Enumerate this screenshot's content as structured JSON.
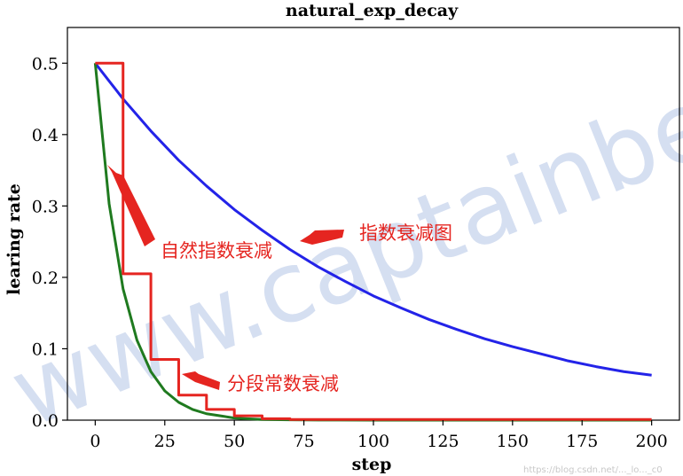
{
  "chart_data": {
    "type": "line",
    "title": "natural_exp_decay",
    "xlabel": "step",
    "ylabel": "learing rate",
    "xlim": [
      -10,
      210
    ],
    "ylim": [
      0,
      0.55
    ],
    "xticks": [
      0,
      25,
      50,
      75,
      100,
      125,
      150,
      175,
      200
    ],
    "yticks": [
      0.0,
      0.1,
      0.2,
      0.3,
      0.4,
      0.5
    ],
    "xtick_labels": [
      "0",
      "25",
      "50",
      "75",
      "100",
      "125",
      "150",
      "175",
      "200"
    ],
    "ytick_labels": [
      "0.0",
      "0.1",
      "0.2",
      "0.3",
      "0.4",
      "0.5"
    ],
    "grid": false,
    "series": [
      {
        "color": "#2323e8",
        "x": [
          0,
          10,
          20,
          30,
          40,
          50,
          60,
          70,
          80,
          90,
          100,
          110,
          120,
          130,
          140,
          150,
          160,
          170,
          180,
          190,
          200
        ],
        "y": [
          0.5,
          0.45,
          0.405,
          0.364,
          0.328,
          0.295,
          0.266,
          0.239,
          0.215,
          0.194,
          0.174,
          0.157,
          0.141,
          0.127,
          0.114,
          0.103,
          0.093,
          0.083,
          0.075,
          0.068,
          0.063
        ]
      },
      {
        "color": "#1f7a1f",
        "x": [
          0,
          5,
          10,
          15,
          20,
          25,
          30,
          35,
          40,
          45,
          50,
          60,
          70,
          80,
          100,
          150,
          200
        ],
        "y": [
          0.5,
          0.303,
          0.184,
          0.112,
          0.068,
          0.041,
          0.025,
          0.015,
          0.009,
          0.006,
          0.003,
          0.001,
          0.0005,
          0.0002,
          0.0,
          0.0,
          0.0
        ]
      },
      {
        "color": "#e52520",
        "step": true,
        "x": [
          0,
          10,
          20,
          30,
          40,
          50,
          60,
          70,
          200
        ],
        "y": [
          0.5,
          0.205,
          0.085,
          0.035,
          0.015,
          0.006,
          0.002,
          0.001,
          0.001
        ]
      }
    ],
    "annotations": [
      {
        "text": "自然指数衰减"
      },
      {
        "text": "指数衰减图"
      },
      {
        "text": "分段常数衰减"
      }
    ]
  },
  "watermark": "www.captainbed.net",
  "credit": "https://blog.csdn.net/..._lo..._c0"
}
